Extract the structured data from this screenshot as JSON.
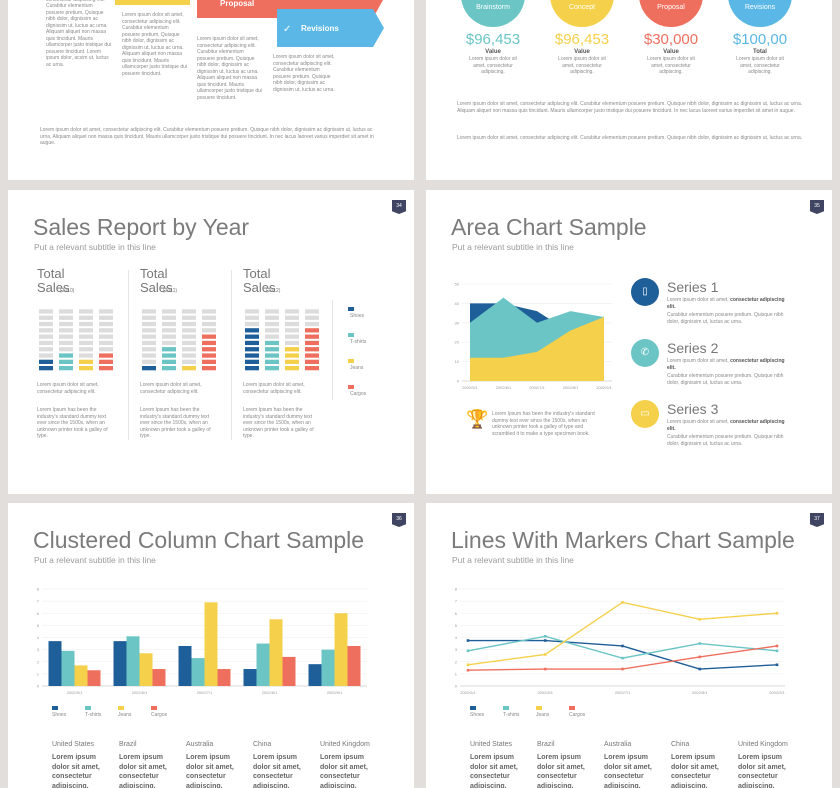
{
  "slides": [
    {
      "arrows": [
        "Proposal",
        "Revisions"
      ],
      "paragraphs": [
        "Lorem ipsum dolor sit amet, consectetur adipiscing elit. Curabitur elementum posuere pretium. Quisque nibh dolor, dignissim ac dignissim ut, luctus ac urna. Aliquam aliquet non massa quis tincidunt. Mauris ullamcorper justo tristique dui posuere tincidunt. Lorem ipsum dolor, acsim ut, luctus ac urna.",
        "Lorem ipsum dolor sit amet, consectetur adipiscing elit. Curabitur elementum posuere pretium. Quisque nibh dolor, dignissim ac dignissim ut, luctus ac urna. Aliquam aliquet non massa quis tincidunt. Mauris ullamcorper justo tristique dui posuere tincidunt.",
        "Lorem ipsum dolor sit amet, consectetur adipiscing elit. Curabitur elementum posuere pretium. Quisque nibh dolor, dignissim ac dignissim ut, luctus ac urna. Aliquam aliquet non massa quis tincidunt. Mauris ullamcorper justo tristique dui posuere tincidunt.",
        "Lorem ipsum dolor sit amet, consectetur adipiscing elit. Curabitur elementum posuere pretium. Quisque nibh dolor, dignissim ac dignissim ut, luctus ac urna."
      ],
      "footer": "Lorem ipsum dolor sit amet, consectetur adipiscing elit. Curabitur elementum posuere pretium. Quisque nibh dolor, dignissim ac dignissim ut, luctus ac urna. Aliquam aliquet non massa quis tincidunt. Mauris ullamcorper justo tristique dui posuere tincidunt. In nec lacus laoreet varius imperdiet sit amet in augue."
    },
    {
      "circles": [
        {
          "label": "Brainstorm",
          "value": "$96,453",
          "caption": "Value",
          "text": "Lorem ipsum dolor sit amet, consectetur adipiscing."
        },
        {
          "label": "Concept",
          "value": "$96,453",
          "caption": "Value",
          "text": "Lorem ipsum dolor sit amet, consectetur adipiscing."
        },
        {
          "label": "Proposal",
          "value": "$30,000",
          "caption": "Value",
          "text": "Lorem ipsum dolor sit amet, consectetur adipiscing."
        },
        {
          "label": "Revisions",
          "value": "$100,00",
          "caption": "Total",
          "text": "Lorem ipsum dolor sit amet, consectetur adipiscing."
        }
      ],
      "paragraph": "Lorem ipsum dolor sit amet, consectetur adipiscing elit. Curabitur elementum posuere pretium. Quisque nibh dolor, dignissim ac dignissim ut, luctus ac urna. Aliquam aliquet non massa quis tincidunt. Mauris ullamcorper justo tristique dui posuere tincidunt. In nec lacus laoreet varius imperdiet sit amet in augue.",
      "paragraph2": "Lorem ipsum dolor sit amet, consectetur adipiscing elit. Curabitur elementum posuere pretium. Quisque nibh dolor, dignissim ac dignissim ut, luctus ac urna."
    },
    {
      "number": "34",
      "title": "Sales Report by Year",
      "subtitle": "Put a relevant subtitle in this line",
      "columns": [
        {
          "heading": "Total Sales",
          "year": "(2010)",
          "filled": [
            2,
            3,
            2,
            3
          ],
          "text": "Lorem ipsum dolor sit amet, consectetur adipiscing elit.",
          "text2": "Lorem Ipsum has been the industry's standard dummy text ever since the 1500s, when an unknown printer took a galley of type."
        },
        {
          "heading": "Total Sales",
          "year": "(2011)",
          "filled": [
            1,
            4,
            1,
            6
          ],
          "text": "Lorem ipsum dolor sit amet, consectetur adipiscing elit.",
          "text2": "Lorem Ipsum has been the industry's standard dummy text ever since the 1500s, when an unknown printer took a galley of type."
        },
        {
          "heading": "Total Sales",
          "year": "(2012)",
          "filled": [
            7,
            5,
            4,
            7
          ],
          "text": "Lorem ipsum dolor sit amet, consectetur adipiscing elit.",
          "text2": "Lorem Ipsum has been the industry's standard dummy text ever since the 1500s, when an unknown printer took a galley of type."
        }
      ],
      "legend": [
        {
          "name": "Shoes",
          "color": "#1f5f99"
        },
        {
          "name": "T-shirts",
          "color": "#6cc5c5"
        },
        {
          "name": "Jeans",
          "color": "#f5d04a"
        },
        {
          "name": "Cargos",
          "color": "#ef6f5f"
        }
      ]
    },
    {
      "number": "35",
      "title": "Area Chart Sample",
      "subtitle": "Put a relevant subtitle in this line",
      "chart": {
        "type": "area",
        "categories": [
          "2002/5/1",
          "2002/6/1",
          "2002/7/1",
          "2002/8/1",
          "2002/9/1"
        ],
        "series": [
          {
            "name": "Series 1",
            "color": "#1f5f99",
            "values": [
              40,
              40,
              36,
              25,
              29
            ]
          },
          {
            "name": "Series 2",
            "color": "#6cc5c5",
            "values": [
              30,
              43,
              30,
              36,
              33
            ]
          },
          {
            "name": "Series 3",
            "color": "#f5d04a",
            "values": [
              12,
              12,
              15,
              26,
              33
            ]
          }
        ],
        "ylim": [
          0,
          50
        ],
        "yticks": [
          0,
          10,
          20,
          30,
          40,
          50
        ]
      },
      "items": [
        {
          "lead": "Lorem ipsum dolor sit amet,",
          "bold": "consectetur adipiscing elit.",
          "text": "Curabitur elementum posuere pretium. Quisque nibh dolor, dignissim ut, luctus ac urna."
        },
        {
          "lead": "Lorem ipsum dolor sit amet,",
          "bold": "consectetur adipiscing elit.",
          "text": "Curabitur elementum posuere pretium. Quisque nibh dolor, dignissim ut, luctus ac urna."
        },
        {
          "lead": "Lorem ipsum dolor sit amet,",
          "bold": "consectetur adipiscing elit.",
          "text": "Curabitur elementum posuere pretium. Quisque nibh dolor, dignissim ut, luctus ac urna."
        }
      ],
      "note": "Lorem Ipsum has been the industry's standard dummy text ever since the 1500s, when an unknown printer took a galley of type and scrambled it to make a type specimen book."
    },
    {
      "number": "36",
      "title": "Clustered Column Chart Sample",
      "subtitle": "Put a relevant subtitle in this line",
      "chart": {
        "type": "bar",
        "categories": [
          "2002/5/1",
          "2002/6/1",
          "2002/7/1",
          "2002/8/1",
          "2002/9/1"
        ],
        "series": [
          {
            "name": "Shoes",
            "color": "#1f5f99",
            "values": [
              3.7,
              3.7,
              3.3,
              1.4,
              1.8
            ]
          },
          {
            "name": "T-shirts",
            "color": "#6cc5c5",
            "values": [
              2.9,
              4.1,
              2.3,
              3.5,
              3
            ]
          },
          {
            "name": "Jeans",
            "color": "#f5d04a",
            "values": [
              1.7,
              2.7,
              6.9,
              5.5,
              6
            ]
          },
          {
            "name": "Cargos",
            "color": "#ef6f5f",
            "values": [
              1.3,
              1.4,
              1.4,
              2.4,
              3.3
            ]
          }
        ],
        "ylim": [
          0,
          8
        ],
        "yticks": [
          0,
          1,
          2,
          3,
          4,
          5,
          6,
          7,
          8
        ]
      },
      "countries": [
        {
          "name": "United States",
          "text": "Lorem ipsum dolor sit amet, consectetur adipiscing."
        },
        {
          "name": "Brazil",
          "text": "Lorem ipsum dolor sit amet, consectetur adipiscing."
        },
        {
          "name": "Australia",
          "text": "Lorem ipsum dolor sit amet, consectetur adipiscing."
        },
        {
          "name": "China",
          "text": "Lorem ipsum dolor sit amet, consectetur adipiscing."
        },
        {
          "name": "United Kingdom",
          "text": "Lorem ipsum dolor sit amet, consectetur adipiscing."
        }
      ]
    },
    {
      "number": "37",
      "title": "Lines With Markers Chart Sample",
      "subtitle": "Put a relevant subtitle in this line",
      "chart": {
        "type": "line",
        "categories": [
          "2002/5/1",
          "2002/6/1",
          "2002/7/1",
          "2002/8/1",
          "2002/9/1"
        ],
        "series": [
          {
            "name": "Shoes",
            "color": "#1f5f99",
            "values": [
              3.75,
              3.75,
              3.3,
              1.4,
              1.75
            ]
          },
          {
            "name": "T-shirts",
            "color": "#6cc5c5",
            "values": [
              2.9,
              4.1,
              2.3,
              3.5,
              2.9
            ]
          },
          {
            "name": "Jeans",
            "color": "#f5d04a",
            "values": [
              1.75,
              2.6,
              6.9,
              5.5,
              6
            ]
          },
          {
            "name": "Cargos",
            "color": "#ef6f5f",
            "values": [
              1.3,
              1.4,
              1.4,
              2.4,
              3.3
            ]
          }
        ],
        "ylim": [
          0,
          8
        ],
        "yticks": [
          0,
          1,
          2,
          3,
          4,
          5,
          6,
          7,
          8
        ]
      },
      "countries": [
        {
          "name": "United States",
          "text": "Lorem ipsum dolor sit amet, consectetur adipiscing."
        },
        {
          "name": "Brazil",
          "text": "Lorem ipsum dolor sit amet, consectetur adipiscing."
        },
        {
          "name": "Australia",
          "text": "Lorem ipsum dolor sit amet, consectetur adipiscing."
        },
        {
          "name": "China",
          "text": "Lorem ipsum dolor sit amet, consectetur adipiscing."
        },
        {
          "name": "United Kingdom",
          "text": "Lorem ipsum dolor sit amet, consectetur adipiscing."
        }
      ]
    }
  ]
}
